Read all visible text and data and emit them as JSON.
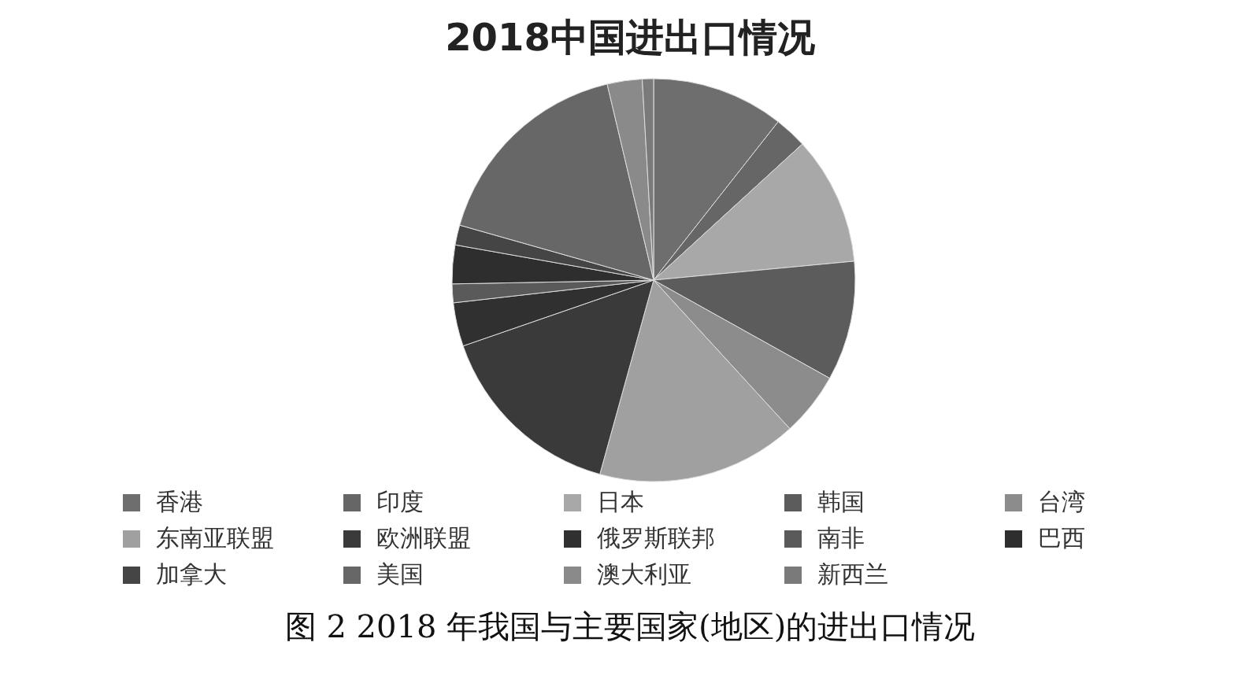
{
  "chart_data": {
    "type": "pie",
    "title": "2018中国进出口情况",
    "categories": [
      "香港",
      "印度",
      "日本",
      "韩国",
      "台湾",
      "东南亚联盟",
      "欧洲联盟",
      "俄罗斯联邦",
      "南非",
      "巴西",
      "加拿大",
      "美国",
      "澳大利亚",
      "新西兰"
    ],
    "values": [
      10.6,
      2.6,
      10.3,
      9.6,
      5.1,
      16.1,
      15.4,
      3.5,
      1.5,
      3.1,
      1.6,
      16.9,
      2.8,
      0.9
    ],
    "colors": [
      "#6e6e6e",
      "#666666",
      "#a8a8a8",
      "#5c5c5c",
      "#8c8c8c",
      "#a0a0a0",
      "#3a3a3a",
      "#303030",
      "#5a5a5a",
      "#2e2e2e",
      "#454545",
      "#676767",
      "#8a8a8a",
      "#7a7a7a"
    ],
    "legend": "bottom",
    "annotations": [
      "图 2 2018 年我国与主要国家(地区)的进出口情况"
    ]
  }
}
